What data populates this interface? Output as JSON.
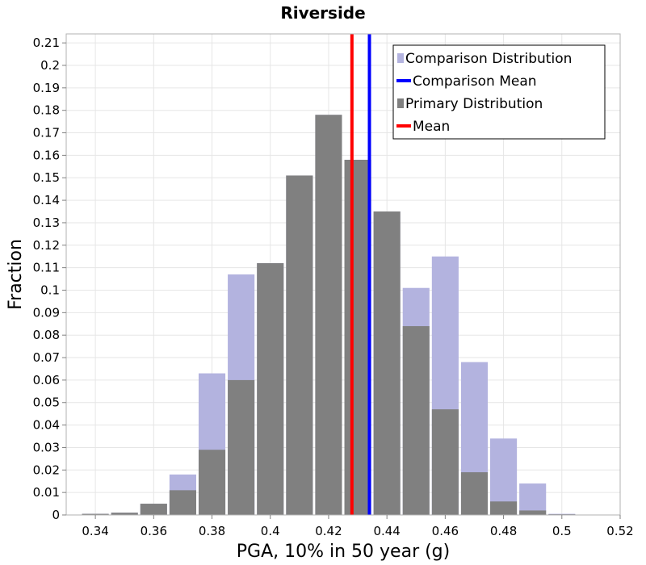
{
  "chart_data": {
    "type": "bar",
    "title": "Riverside",
    "xlabel": "PGA, 10% in 50 year (g)",
    "ylabel": "Fraction",
    "xlim": [
      0.33,
      0.52
    ],
    "ylim": [
      0,
      0.214
    ],
    "grid": true,
    "legend_position": "top-right",
    "bin_width": 0.01,
    "x_ticks": [
      "0.34",
      "0.36",
      "0.38",
      "0.4",
      "0.42",
      "0.44",
      "0.46",
      "0.48",
      "0.5",
      "0.52"
    ],
    "y_ticks": [
      "0",
      "0.01",
      "0.02",
      "0.03",
      "0.04",
      "0.05",
      "0.06",
      "0.07",
      "0.08",
      "0.09",
      "0.1",
      "0.11",
      "0.12",
      "0.13",
      "0.14",
      "0.15",
      "0.16",
      "0.17",
      "0.18",
      "0.19",
      "0.2",
      "0.21"
    ],
    "series": [
      {
        "name": "Comparison Distribution",
        "kind": "histogram",
        "color": "#b3b3df",
        "x": [
          0.34,
          0.35,
          0.36,
          0.37,
          0.38,
          0.39,
          0.4,
          0.41,
          0.42,
          0.43,
          0.44,
          0.45,
          0.46,
          0.47,
          0.48,
          0.49,
          0.5,
          0.51
        ],
        "values": [
          0.0005,
          0.001,
          0.005,
          0.018,
          0.063,
          0.107,
          0.112,
          0.151,
          0.178,
          0.158,
          0.135,
          0.101,
          0.115,
          0.068,
          0.034,
          0.014,
          0.0005,
          0
        ]
      },
      {
        "name": "Comparison Mean",
        "kind": "vline",
        "color": "#0000ff",
        "x": 0.434
      },
      {
        "name": "Primary Distribution",
        "kind": "histogram",
        "color": "#808080",
        "x": [
          0.34,
          0.35,
          0.36,
          0.37,
          0.38,
          0.39,
          0.4,
          0.41,
          0.42,
          0.43,
          0.44,
          0.45,
          0.46,
          0.47,
          0.48,
          0.49,
          0.5,
          0.51
        ],
        "values": [
          0.0005,
          0.001,
          0.005,
          0.011,
          0.029,
          0.06,
          0.112,
          0.151,
          0.178,
          0.158,
          0.135,
          0.084,
          0.047,
          0.019,
          0.006,
          0.002,
          0.0003,
          0
        ]
      },
      {
        "name": "Mean",
        "kind": "vline",
        "color": "#ff0000",
        "x": 0.428
      }
    ]
  }
}
